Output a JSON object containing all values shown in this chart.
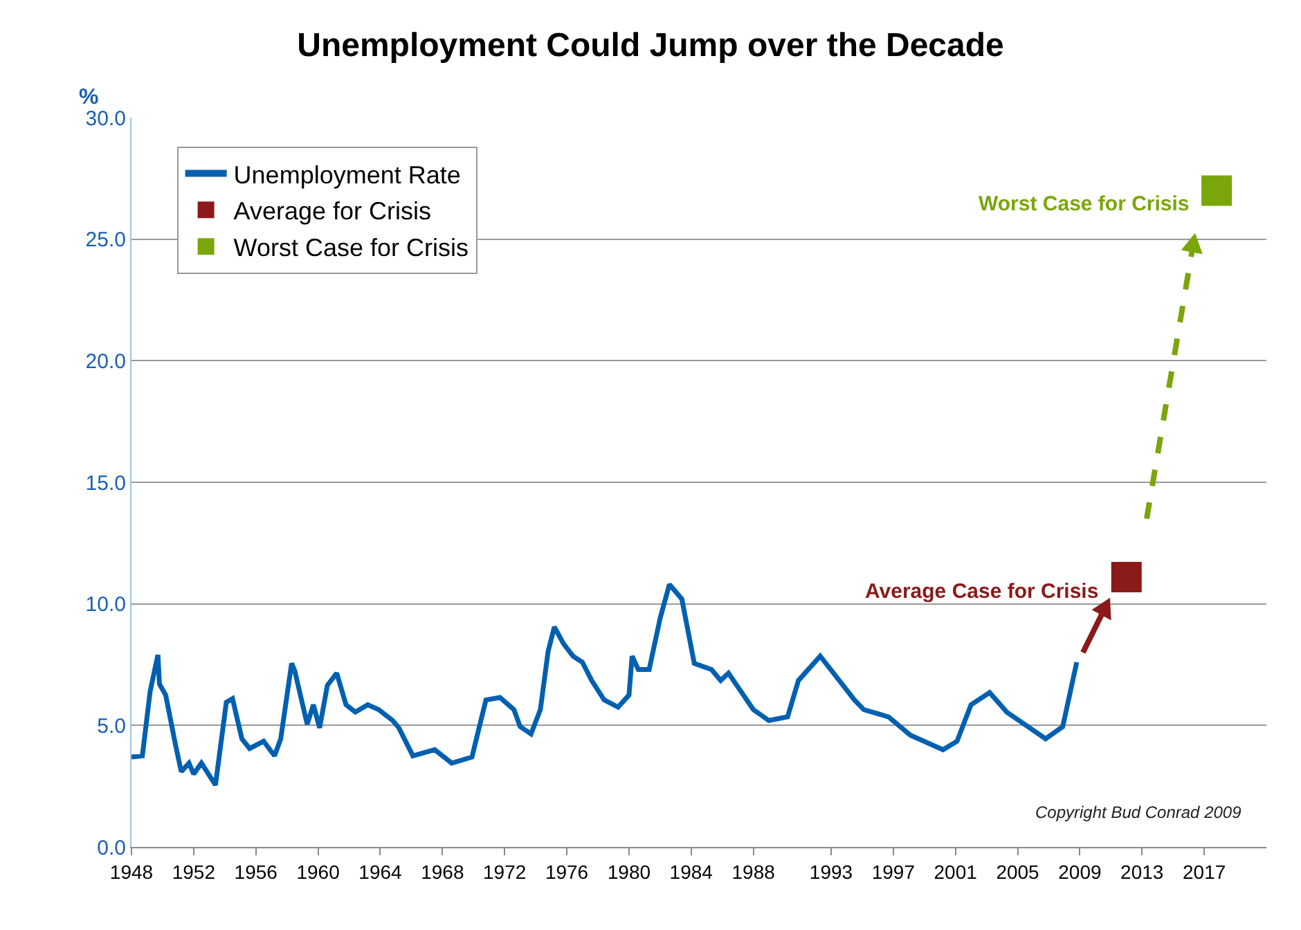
{
  "chart_data": {
    "type": "line",
    "title": "Unemployment Could Jump over the Decade",
    "ylabel": "%",
    "xlim": [
      1948,
      2021
    ],
    "xticks": [
      1948,
      1952,
      1956,
      1960,
      1964,
      1968,
      1972,
      1976,
      1980,
      1984,
      1988,
      1993,
      1997,
      2001,
      2005,
      2009,
      2013,
      2017
    ],
    "ylim": [
      0,
      30
    ],
    "yticks": [
      {
        "value": 0,
        "label": "0.0"
      },
      {
        "value": 5,
        "label": "5.0"
      },
      {
        "value": 10,
        "label": "10.0"
      },
      {
        "value": 15,
        "label": "15.0"
      },
      {
        "value": 20,
        "label": "20.0"
      },
      {
        "value": 25,
        "label": "25.0"
      },
      {
        "value": 30,
        "label": "30.0"
      }
    ],
    "grid": "y",
    "legend": "top left",
    "series": [
      {
        "name": "Unemployment Rate",
        "color": "#0060b0",
        "marker": "none",
        "x": [
          1948,
          1948.7,
          1949.2,
          1949.7,
          1949.8,
          1950.2,
          1950.8,
          1951.2,
          1951.7,
          1952,
          1952.5,
          1953.4,
          1954.1,
          1954.5,
          1955.1,
          1955.6,
          1956.5,
          1957.2,
          1957.6,
          1958.3,
          1958.5,
          1959.3,
          1959.7,
          1960.1,
          1960.6,
          1961.2,
          1961.8,
          1962.4,
          1963.2,
          1963.9,
          1964.8,
          1965.2,
          1966.1,
          1967.5,
          1968.6,
          1969.9,
          1970.8,
          1971.7,
          1972.6,
          1973,
          1973.7,
          1974.3,
          1974.8,
          1975.2,
          1975.8,
          1976.4,
          1977,
          1977.6,
          1978.4,
          1979.3,
          1980,
          1980.2,
          1980.6,
          1981.3,
          1982,
          1982.6,
          1983.4,
          1984.2,
          1985.3,
          1985.9,
          1986.4,
          1988,
          1989,
          1990.2,
          1990.9,
          1992.3,
          1994.5,
          1995.1,
          1996.7,
          1998.1,
          2000.2,
          2001.1,
          2002,
          2003.2,
          2004.3,
          2006.8,
          2007.9,
          2008.8
        ],
        "values": [
          3.7,
          3.75,
          6.4,
          7.9,
          6.7,
          6.25,
          4.3,
          3.1,
          3.45,
          3.0,
          3.45,
          2.55,
          5.95,
          6.1,
          4.45,
          4.05,
          4.35,
          3.75,
          4.45,
          7.55,
          7.25,
          5.05,
          5.85,
          4.9,
          6.65,
          7.15,
          5.85,
          5.55,
          5.85,
          5.65,
          5.2,
          4.9,
          3.75,
          4.0,
          3.45,
          3.7,
          6.05,
          6.15,
          5.65,
          4.95,
          4.65,
          5.65,
          8.05,
          9.05,
          8.35,
          7.85,
          7.6,
          6.85,
          6.05,
          5.75,
          6.25,
          7.85,
          7.3,
          7.3,
          9.4,
          10.8,
          10.2,
          7.55,
          7.3,
          6.85,
          7.15,
          5.65,
          5.2,
          5.35,
          6.85,
          7.85,
          6.05,
          5.65,
          5.35,
          4.6,
          4.0,
          4.35,
          5.85,
          6.35,
          5.55,
          4.45,
          4.95,
          7.6
        ]
      },
      {
        "name": "Average for Crisis",
        "color": "#8b1a1a",
        "type": "scatter",
        "marker": "square",
        "x": [
          2012
        ],
        "values": [
          11.1
        ]
      },
      {
        "name": "Worst Case for Crisis",
        "color": "#7aa60a",
        "type": "scatter",
        "marker": "square",
        "x": [
          2017.8
        ],
        "values": [
          27.0
        ]
      }
    ],
    "annotations": [
      {
        "text": "Average Case for Crisis",
        "x": 2012,
        "y": 11.1
      },
      {
        "text": "Worst Case for Crisis",
        "x": 2017.8,
        "y": 27.0
      },
      "Copyright Bud Conrad 2009"
    ]
  }
}
